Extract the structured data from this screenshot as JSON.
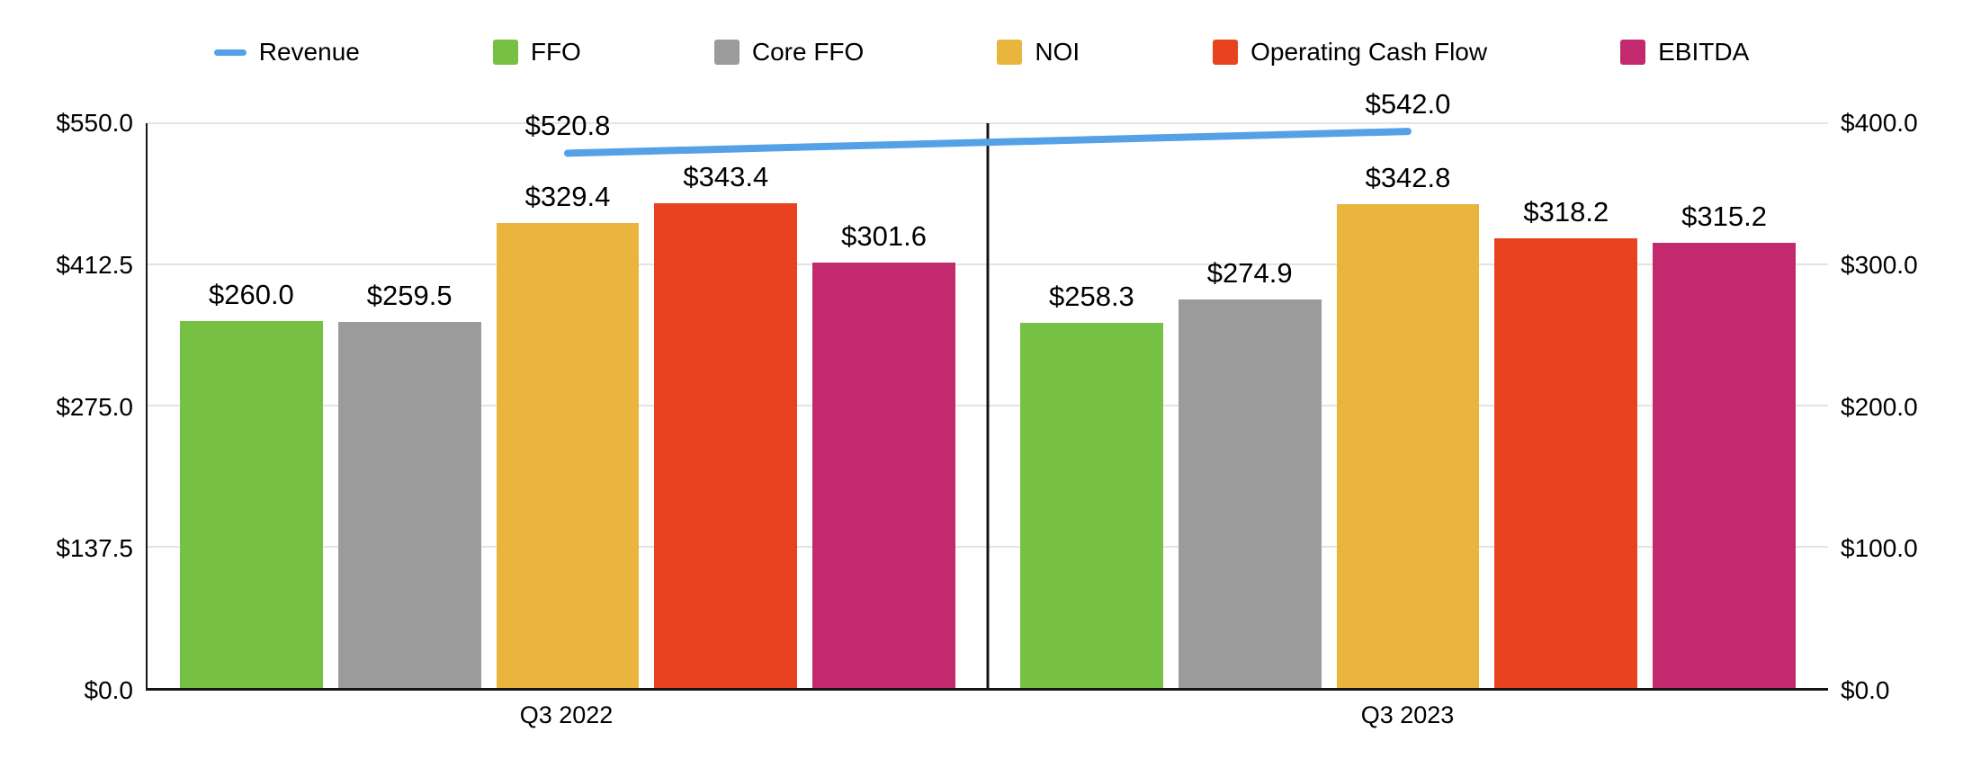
{
  "chart_data": {
    "type": "bar",
    "subtype": "grouped-bars-with-line-overlay-dual-axis",
    "categories": [
      "Q3 2022",
      "Q3 2023"
    ],
    "legend_position": "top",
    "grid": true,
    "series": [
      {
        "name": "Revenue",
        "type": "line",
        "axis": "left",
        "color": "#54a1e8",
        "values": [
          520.8,
          542.0
        ],
        "labels": [
          "$520.8",
          "$542.0"
        ]
      },
      {
        "name": "FFO",
        "type": "bar",
        "axis": "right",
        "color": "#76c043",
        "values": [
          260.0,
          258.3
        ],
        "labels": [
          "$260.0",
          "$258.3"
        ]
      },
      {
        "name": "Core FFO",
        "type": "bar",
        "axis": "right",
        "color": "#9b9b9b",
        "values": [
          259.5,
          274.9
        ],
        "labels": [
          "$259.5",
          "$274.9"
        ]
      },
      {
        "name": "NOI",
        "type": "bar",
        "axis": "right",
        "color": "#e9b53c",
        "values": [
          329.4,
          342.8
        ],
        "labels": [
          "$329.4",
          "$342.8"
        ]
      },
      {
        "name": "Operating Cash Flow",
        "type": "bar",
        "axis": "right",
        "color": "#e8431f",
        "values": [
          343.4,
          318.2
        ],
        "labels": [
          "$343.4",
          "$318.2"
        ]
      },
      {
        "name": "EBITDA",
        "type": "bar",
        "axis": "right",
        "color": "#c22a6d",
        "values": [
          301.6,
          315.2
        ],
        "labels": [
          "$301.6",
          "$315.2"
        ]
      }
    ],
    "left_axis": {
      "min": 0,
      "max": 550,
      "ticks": [
        {
          "label": "$550.0",
          "value": 550
        },
        {
          "label": "$412.5",
          "value": 412.5
        },
        {
          "label": "$275.0",
          "value": 275
        },
        {
          "label": "$137.5",
          "value": 137.5
        },
        {
          "label": "$0.0",
          "value": 0
        }
      ]
    },
    "right_axis": {
      "min": 0,
      "max": 400,
      "ticks": [
        {
          "label": "$400.0",
          "value": 400
        },
        {
          "label": "$300.0",
          "value": 300
        },
        {
          "label": "$200.0",
          "value": 200
        },
        {
          "label": "$100.0",
          "value": 100
        },
        {
          "label": "$0.0",
          "value": 0
        }
      ]
    },
    "colors": {
      "axis_line": "#151515",
      "gridline": "#e4e4e4",
      "text": "#000000"
    }
  }
}
